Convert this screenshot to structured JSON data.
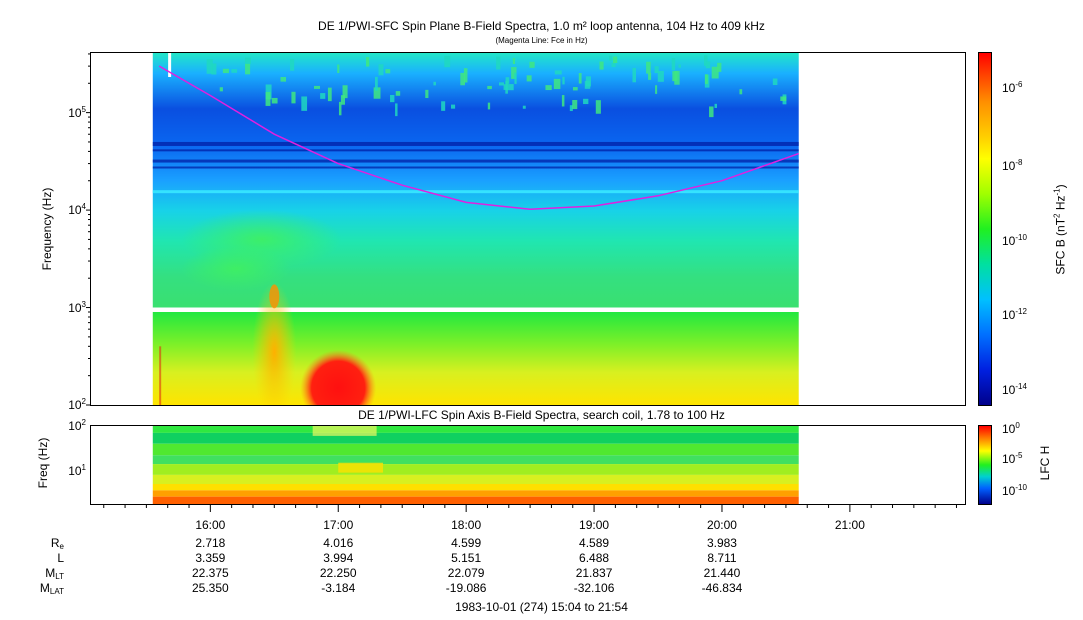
{
  "chart_data": [
    {
      "type": "heatmap",
      "title": "DE 1/PWI-SFC  Spin Plane B-Field Spectra, 1.0 m² loop antenna, 104 Hz to 409 kHz",
      "subtitle": "(Magenta Line: Fce in Hz)",
      "ylabel": "Frequency (Hz)",
      "yscale": "log",
      "ylim": [
        100,
        409000
      ],
      "yticks": [
        "10^2",
        "10^3",
        "10^4",
        "10^5"
      ],
      "colorbar_label": "SFC B (nT² Hz⁻¹)",
      "colorbar_ticks": [
        "10^-6",
        "10^-8",
        "10^-10",
        "10^-12",
        "10^-14"
      ],
      "overlay_line": {
        "name": "Fce",
        "color": "#e020e0",
        "points": [
          [
            15.6,
            300000
          ],
          [
            16.0,
            150000
          ],
          [
            16.5,
            60000
          ],
          [
            17.0,
            30000
          ],
          [
            17.5,
            18000
          ],
          [
            18.0,
            12000
          ],
          [
            18.5,
            10200
          ],
          [
            19.0,
            11000
          ],
          [
            19.5,
            14000
          ],
          [
            20.0,
            20000
          ],
          [
            20.6,
            38000
          ]
        ]
      }
    },
    {
      "type": "heatmap",
      "title": "DE 1/PWI-LFC  Spin Axis B-Field Spectra, search coil, 1.78 to 100 Hz",
      "ylabel": "Freq (Hz)",
      "yscale": "log",
      "ylim": [
        1.78,
        100
      ],
      "yticks": [
        "10^2",
        "10^1"
      ],
      "colorbar_label": "LFC H",
      "colorbar_ticks": [
        "10^0",
        "10^-5",
        "10^-10"
      ]
    }
  ],
  "xaxis": {
    "tick_labels": [
      "16:00",
      "17:00",
      "18:00",
      "19:00",
      "20:00",
      "21:00"
    ],
    "range_hours": [
      15.067,
      21.9
    ]
  },
  "ephemeris": {
    "rows": [
      {
        "label_main": "R",
        "label_sub": "e",
        "values": [
          "2.718",
          "4.016",
          "4.599",
          "4.589",
          "3.983"
        ]
      },
      {
        "label_main": "L",
        "label_sub": "",
        "values": [
          "3.359",
          "3.994",
          "5.151",
          "6.488",
          "8.711"
        ]
      },
      {
        "label_main": "M",
        "label_sub": "LT",
        "values": [
          "22.375",
          "22.250",
          "22.079",
          "21.837",
          "21.440"
        ]
      },
      {
        "label_main": "M",
        "label_sub": "LAT",
        "values": [
          "25.350",
          "-3.184",
          "-19.086",
          "-32.106",
          "-46.834"
        ]
      }
    ]
  },
  "footer": "1983-10-01 (274) 15:04 to 21:54"
}
